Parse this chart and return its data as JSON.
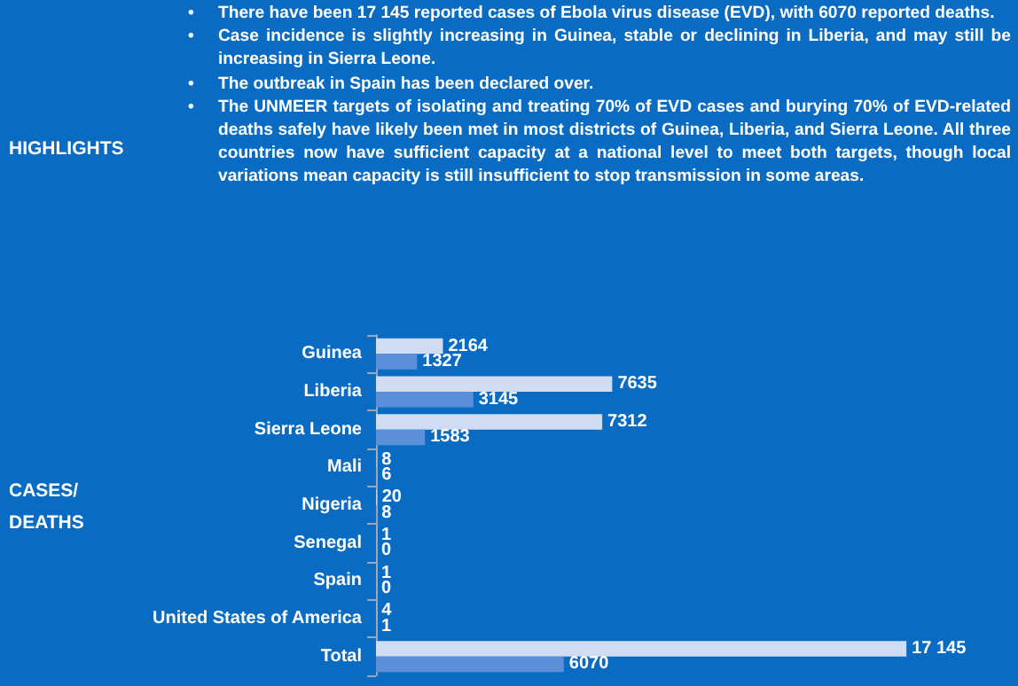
{
  "chart_data": {
    "type": "bar",
    "orientation": "horizontal",
    "ylabel": "CASES/ DEATHS",
    "annotations": [
      "HIGHLIGHTS",
      "• There have been 17 145 reported cases of Ebola virus disease (EVD), with 6070 reported deaths.",
      "• Case incidence is slightly increasing in Guinea, stable or declining in Liberia, and may still be increasing in Sierra Leone.",
      "• The outbreak in Spain has been declared over.",
      "• The UNMEER targets of isolating and treating 70% of EVD cases and burying 70% of EVD-related deaths safely have likely been met in most districts of Guinea, Liberia, and Sierra Leone. All three countries now have sufficient capacity at a national level to meet both targets, though local variations mean capacity is still insufficient to stop transmission in some areas."
    ],
    "categories": [
      "Guinea",
      "Liberia",
      "Sierra Leone",
      "Mali",
      "Nigeria",
      "Senegal",
      "Spain",
      "United States of America",
      "Total"
    ],
    "series": [
      {
        "color": "#cfdcf2",
        "values": [
          2164,
          7635,
          7312,
          8,
          20,
          1,
          1,
          4,
          17145
        ],
        "value_labels": [
          "2164",
          "7635",
          "7312",
          "8",
          "20",
          "1",
          "1",
          "4",
          "17 145"
        ]
      },
      {
        "color": "#5b8fd8",
        "values": [
          1327,
          3145,
          1583,
          6,
          8,
          0,
          0,
          1,
          6070
        ],
        "value_labels": [
          "1327",
          "3145",
          "1583",
          "6",
          "8",
          "0",
          "0",
          "1",
          "6070"
        ]
      }
    ]
  }
}
